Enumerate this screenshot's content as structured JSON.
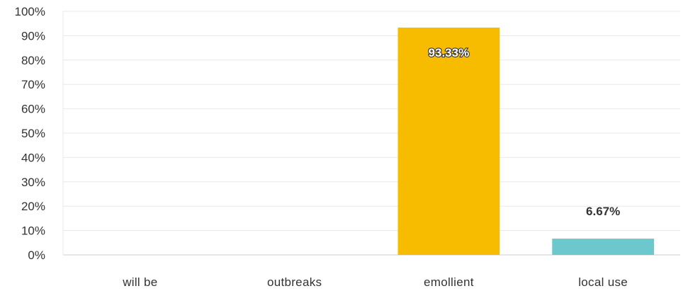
{
  "chart_data": {
    "type": "bar",
    "title": "",
    "xlabel": "",
    "ylabel": "",
    "categories": [
      "will be",
      "outbreaks",
      "emollient",
      "local use"
    ],
    "values": [
      0,
      0,
      93.33,
      6.67
    ],
    "data_labels": [
      "",
      "",
      "93.33%",
      "6.67%"
    ],
    "bar_colors": [
      "#f7bc00",
      "#f7bc00",
      "#f7bc00",
      "#6cc8cc"
    ],
    "label_inside": [
      false,
      false,
      true,
      false
    ],
    "ylim": [
      0,
      100
    ],
    "yticks": [
      0,
      10,
      20,
      30,
      40,
      50,
      60,
      70,
      80,
      90,
      100
    ],
    "ytick_labels": [
      "0%",
      "10%",
      "20%",
      "30%",
      "40%",
      "50%",
      "60%",
      "70%",
      "80%",
      "90%",
      "100%"
    ],
    "grid": true,
    "legend": "none"
  }
}
